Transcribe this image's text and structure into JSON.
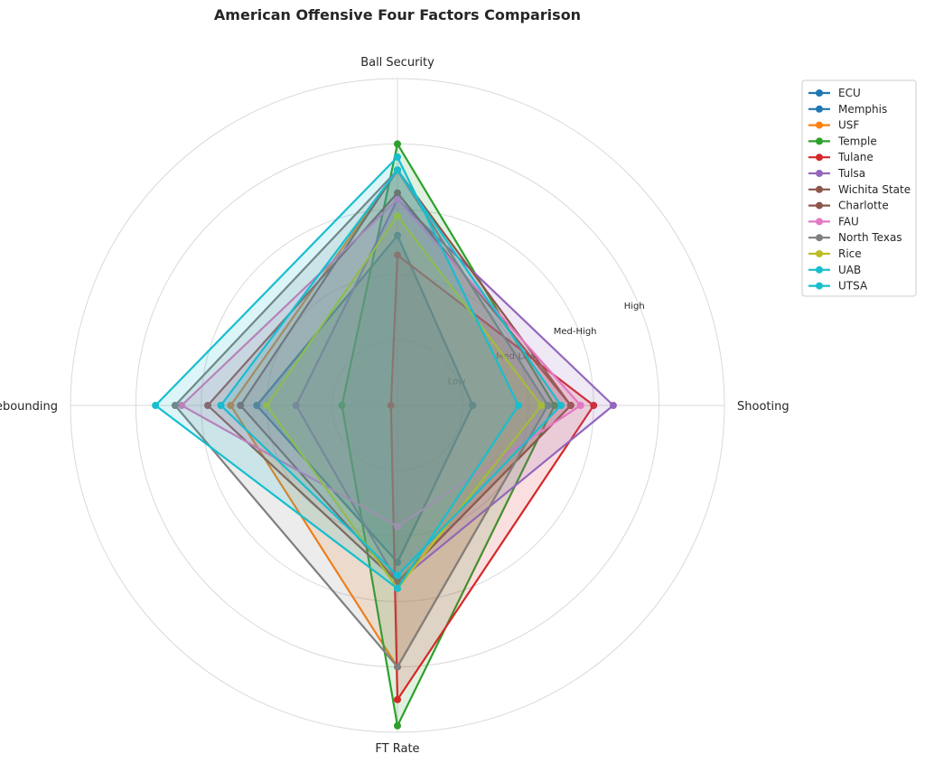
{
  "chart_data": {
    "type": "radar",
    "title": "American Offensive Four Factors Comparison",
    "axes": [
      "Ball Security",
      "Shooting",
      "FT Rate",
      "Off Rebounding"
    ],
    "rlim": [
      0,
      5
    ],
    "ring_ticks": [
      1,
      2,
      3,
      4,
      5
    ],
    "ring_labels": [
      "Low",
      "Med-Low",
      "Med-High",
      "High",
      ""
    ],
    "grid": true,
    "legend_position": "upper-right-outside",
    "series": [
      {
        "name": "ECU",
        "color": "#1f77b4",
        "values": [
          2.6,
          1.15,
          2.4,
          2.15
        ]
      },
      {
        "name": "Memphis",
        "color": "#1f77b4",
        "values": [
          2.6,
          1.15,
          2.4,
          2.15
        ]
      },
      {
        "name": "USF",
        "color": "#ff7f0e",
        "values": [
          3.6,
          2.3,
          4.0,
          2.55
        ]
      },
      {
        "name": "Temple",
        "color": "#2ca02c",
        "values": [
          4.0,
          2.4,
          4.9,
          0.85
        ]
      },
      {
        "name": "Tulane",
        "color": "#d62728",
        "values": [
          2.3,
          3.0,
          4.5,
          0.1
        ]
      },
      {
        "name": "Tulsa",
        "color": "#9467bd",
        "values": [
          3.15,
          3.3,
          2.7,
          1.55
        ]
      },
      {
        "name": "Wichita State",
        "color": "#8c564b",
        "values": [
          3.6,
          2.65,
          2.7,
          2.4
        ]
      },
      {
        "name": "Charlotte",
        "color": "#8c564b",
        "values": [
          3.25,
          2.65,
          2.7,
          2.9
        ]
      },
      {
        "name": "FAU",
        "color": "#e377c2",
        "values": [
          3.15,
          2.8,
          1.85,
          3.3
        ]
      },
      {
        "name": "North Texas",
        "color": "#7f7f7f",
        "values": [
          3.6,
          2.3,
          4.0,
          3.4
        ]
      },
      {
        "name": "Rice",
        "color": "#bcbd22",
        "values": [
          2.9,
          2.2,
          2.8,
          2.0
        ]
      },
      {
        "name": "UAB",
        "color": "#17becf",
        "values": [
          3.6,
          2.5,
          2.6,
          2.7
        ]
      },
      {
        "name": "UTSA",
        "color": "#17becf",
        "values": [
          3.8,
          1.85,
          2.8,
          3.7
        ]
      }
    ]
  }
}
